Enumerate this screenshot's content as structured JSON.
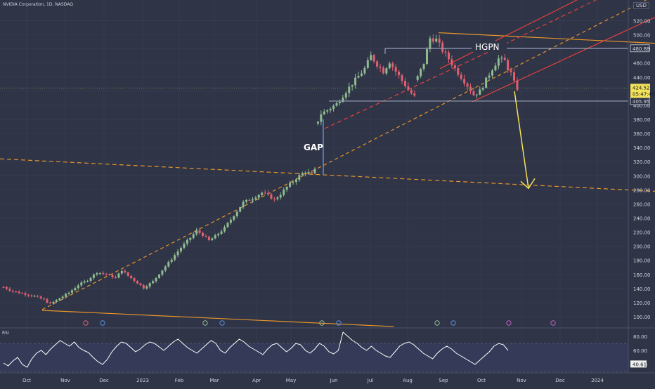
{
  "header": {
    "title": "NVIDIA Corporation, 1D, NASDAQ",
    "currency": "USD"
  },
  "colors": {
    "background": "#2f3447",
    "up_candle": "#8fbc8f",
    "down_candle": "#e06070",
    "channel_red": "#e8413c",
    "orange_line": "#e8962a",
    "neckline": "#9aa0b8",
    "arrow": "#f2e25a",
    "price_tag": "#f2e25a",
    "rsi_line": "#ffffff"
  },
  "chart_data": {
    "type": "candlestick",
    "title": "NVIDIA Corporation, 1D, NASDAQ",
    "xlabel": "",
    "ylabel": "",
    "ylim": [
      92,
      532
    ],
    "y_ticks": [
      100,
      120,
      140,
      160,
      180,
      200,
      220,
      240,
      260,
      280,
      300,
      320,
      340,
      360,
      380,
      400,
      420,
      440,
      460,
      480,
      500,
      520
    ],
    "y_tick_labels": [
      "100.00",
      "120.00",
      "140.00",
      "160.00",
      "180.00",
      "200.00",
      "220.00",
      "240.00",
      "260.00",
      "280.00",
      "300.00",
      "320.00",
      "340.00",
      "360.00",
      "380.00",
      "400.00",
      "420.00",
      "440.00",
      "460.00",
      "480.00",
      "500.00",
      "520.00"
    ],
    "x_tick_labels": [
      "Oct",
      "Nov",
      "Dec",
      "2023",
      "Feb",
      "Mar",
      "Apr",
      "May",
      "Jun",
      "Jul",
      "Aug",
      "Sep",
      "Oct",
      "Nov",
      "Dec",
      "2024"
    ],
    "price_path": [
      [
        0,
        142
      ],
      [
        3,
        136
      ],
      [
        6,
        133
      ],
      [
        10,
        129
      ],
      [
        13,
        124
      ],
      [
        15,
        118
      ],
      [
        18,
        126
      ],
      [
        21,
        134
      ],
      [
        24,
        145
      ],
      [
        27,
        152
      ],
      [
        30,
        163
      ],
      [
        33,
        160
      ],
      [
        36,
        155
      ],
      [
        38,
        166
      ],
      [
        40,
        158
      ],
      [
        43,
        148
      ],
      [
        45,
        141
      ],
      [
        48,
        150
      ],
      [
        51,
        166
      ],
      [
        54,
        182
      ],
      [
        57,
        198
      ],
      [
        60,
        212
      ],
      [
        62,
        222
      ],
      [
        64,
        216
      ],
      [
        66,
        208
      ],
      [
        68,
        214
      ],
      [
        71,
        226
      ],
      [
        74,
        244
      ],
      [
        77,
        262
      ],
      [
        80,
        268
      ],
      [
        83,
        276
      ],
      [
        85,
        272
      ],
      [
        87,
        266
      ],
      [
        89,
        274
      ],
      [
        91,
        284
      ],
      [
        93,
        292
      ],
      [
        95,
        300
      ],
      [
        97,
        306
      ],
      [
        99,
        302
      ],
      [
        100,
        308
      ],
      [
        101,
        378
      ],
      [
        102,
        388
      ],
      [
        104,
        393
      ],
      [
        107,
        402
      ],
      [
        110,
        420
      ],
      [
        113,
        436
      ],
      [
        116,
        452
      ],
      [
        118,
        470
      ],
      [
        120,
        458
      ],
      [
        122,
        448
      ],
      [
        124,
        462
      ],
      [
        126,
        448
      ],
      [
        128,
        435
      ],
      [
        130,
        422
      ],
      [
        132,
        412
      ],
      [
        133,
        440
      ],
      [
        135,
        460
      ],
      [
        136,
        478
      ],
      [
        137,
        495
      ],
      [
        139,
        493
      ],
      [
        141,
        478
      ],
      [
        143,
        466
      ],
      [
        145,
        452
      ],
      [
        147,
        440
      ],
      [
        149,
        428
      ],
      [
        151,
        415
      ],
      [
        153,
        420
      ],
      [
        155,
        436
      ],
      [
        157,
        452
      ],
      [
        159,
        466
      ],
      [
        161,
        463
      ],
      [
        162,
        452
      ],
      [
        163,
        445
      ],
      [
        164,
        432
      ],
      [
        165,
        424
      ]
    ],
    "last_price": 424.52,
    "last_price_label": "424.52",
    "countdown": "05:47:45",
    "level_upper": 480.88,
    "level_upper_label": "480.88",
    "level_lower": 405.95,
    "level_lower_label": "405.95",
    "target": 280,
    "annotations": [
      "GAP",
      "HGPN"
    ],
    "rsi": {
      "label": "RSI",
      "ylim": [
        30,
        90
      ],
      "y_ticks": [
        40,
        60,
        80
      ],
      "y_tick_labels": [
        "40.00",
        "60.00",
        "80.00"
      ],
      "value_label": "40.61",
      "values": [
        42,
        38,
        45,
        50,
        40,
        36,
        48,
        56,
        60,
        54,
        62,
        68,
        74,
        70,
        66,
        72,
        64,
        60,
        57,
        50,
        44,
        40,
        47,
        58,
        66,
        72,
        70,
        64,
        58,
        62,
        68,
        72,
        70,
        65,
        60,
        66,
        72,
        76,
        70,
        64,
        60,
        56,
        62,
        68,
        74,
        70,
        60,
        56,
        64,
        70,
        76,
        72,
        66,
        62,
        58,
        54,
        62,
        68,
        70,
        64,
        58,
        63,
        70,
        68,
        60,
        56,
        62,
        70,
        66,
        58,
        55,
        60,
        86,
        80,
        74,
        70,
        64,
        60,
        66,
        60,
        56,
        52,
        50,
        58,
        66,
        70,
        72,
        68,
        62,
        56,
        52,
        48,
        56,
        62,
        66,
        62,
        56,
        52,
        48,
        44,
        40,
        46,
        52,
        58,
        66,
        70,
        68,
        60
      ]
    }
  }
}
